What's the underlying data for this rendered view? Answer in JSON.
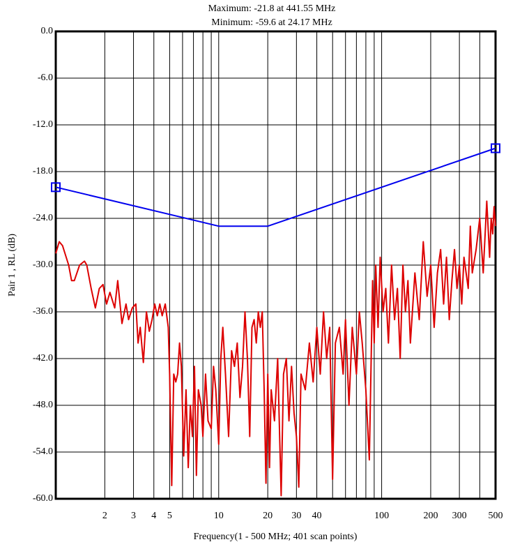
{
  "chart_data": {
    "type": "line",
    "title": "Maximum: -21.8 at 441.55 MHz",
    "subtitle": "Minimum: -59.6 at 24.17 MHz",
    "x_label": "Frequency(1 - 500 MHz; 401 scan points)",
    "y_label": "Pair 1 , RL (dB)",
    "xscale": "log",
    "grid": true,
    "xlim": [
      1,
      500
    ],
    "ylim": [
      -60,
      0
    ],
    "xticks": [
      2,
      3,
      4,
      5,
      10,
      20,
      30,
      40,
      100,
      200,
      300,
      500
    ],
    "xminor_ticks": [
      6,
      7,
      8,
      9,
      50,
      60,
      70,
      80,
      90,
      400
    ],
    "yticks": [
      {
        "value": 0,
        "label": "0.0"
      },
      {
        "value": -6,
        "label": "-6.0"
      },
      {
        "value": -12,
        "label": "-12.0"
      },
      {
        "value": -18,
        "label": "-18.0"
      },
      {
        "value": -24,
        "label": "-24.0"
      },
      {
        "value": -30,
        "label": "-30.0"
      },
      {
        "value": -36,
        "label": "-36.0"
      },
      {
        "value": -42,
        "label": "-42.0"
      },
      {
        "value": -48,
        "label": "-48.0"
      },
      {
        "value": -54,
        "label": "-54.0"
      },
      {
        "value": -60,
        "label": "-60.0"
      }
    ],
    "series": [
      {
        "color": "#0000ee",
        "x": [
          1,
          10,
          20,
          500
        ],
        "values": [
          -20,
          -25,
          -25,
          -15
        ]
      },
      {
        "color": "#dd0000",
        "x": [
          1.0,
          1.05,
          1.1,
          1.2,
          1.25,
          1.3,
          1.4,
          1.5,
          1.55,
          1.65,
          1.75,
          1.85,
          1.95,
          2.05,
          2.15,
          2.3,
          2.4,
          2.55,
          2.7,
          2.8,
          2.95,
          3.1,
          3.2,
          3.3,
          3.45,
          3.6,
          3.75,
          3.9,
          4.05,
          4.2,
          4.35,
          4.5,
          4.7,
          4.9,
          5.0,
          5.15,
          5.3,
          5.45,
          5.6,
          5.75,
          5.9,
          6.1,
          6.3,
          6.5,
          6.7,
          6.9,
          7.1,
          7.3,
          7.5,
          7.8,
          8.0,
          8.3,
          8.6,
          9.0,
          9.3,
          9.6,
          10.0,
          10.3,
          10.6,
          11.0,
          11.5,
          12,
          12.5,
          13,
          13.5,
          14,
          14.5,
          15,
          15.5,
          16,
          16.5,
          17,
          17.5,
          18,
          18.5,
          19,
          19.5,
          20,
          20.5,
          21,
          22,
          23,
          24.17,
          25,
          26,
          27,
          28,
          29,
          30,
          31,
          32,
          34,
          36,
          38,
          40,
          42,
          44,
          46,
          48,
          50,
          52,
          55,
          58,
          60,
          63,
          66,
          70,
          73,
          76,
          80,
          84,
          88,
          90,
          92,
          95,
          98,
          102,
          106,
          110,
          115,
          120,
          125,
          130,
          135,
          140,
          145,
          150,
          160,
          170,
          180,
          190,
          200,
          210,
          220,
          230,
          240,
          250,
          260,
          270,
          280,
          290,
          300,
          310,
          320,
          340,
          350,
          360,
          380,
          400,
          420,
          441.55,
          460,
          470,
          480,
          490,
          500
        ],
        "values": [
          -28.5,
          -27,
          -27.5,
          -30,
          -32,
          -32,
          -30,
          -29.5,
          -30,
          -33,
          -35.5,
          -33,
          -32.5,
          -35,
          -33.5,
          -35.5,
          -32,
          -37.5,
          -35,
          -37,
          -35.5,
          -35,
          -40,
          -38,
          -42.5,
          -36,
          -38.5,
          -37,
          -35,
          -36.5,
          -35,
          -36.5,
          -35,
          -38,
          -44,
          -58.3,
          -44,
          -45,
          -44,
          -40,
          -43,
          -54.5,
          -46,
          -56,
          -48,
          -52,
          -43,
          -57,
          -46,
          -48,
          -52,
          -44,
          -50,
          -51,
          -43,
          -46,
          -53,
          -42,
          -38,
          -44,
          -52,
          -41,
          -43,
          -40,
          -47,
          -43,
          -36,
          -42,
          -52,
          -38,
          -37,
          -40,
          -36,
          -38,
          -36,
          -46,
          -58,
          -44,
          -56,
          -46,
          -50,
          -42,
          -59.6,
          -44,
          -42,
          -50,
          -43,
          -49,
          -52,
          -58.5,
          -44,
          -46,
          -40,
          -45,
          -38,
          -44,
          -36,
          -42,
          -38,
          -57.5,
          -40,
          -38,
          -44,
          -37,
          -48,
          -38,
          -44,
          -36,
          -40,
          -46,
          -55,
          -32,
          -40,
          -30,
          -38,
          -29,
          -36,
          -33,
          -40,
          -30,
          -37,
          -33,
          -42,
          -30,
          -36,
          -32,
          -40,
          -31,
          -37,
          -27,
          -34,
          -30,
          -38,
          -31,
          -28,
          -35,
          -29,
          -37,
          -32,
          -28,
          -33,
          -30,
          -35,
          -29,
          -33,
          -25,
          -31,
          -28,
          -24,
          -31,
          -21.8,
          -29,
          -24,
          -26,
          -22.5,
          -25
        ]
      }
    ]
  }
}
